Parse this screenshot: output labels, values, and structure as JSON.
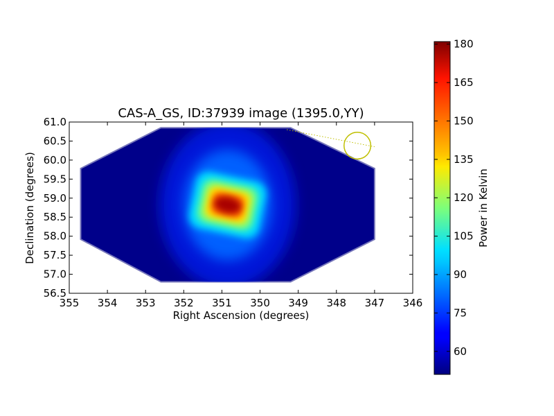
{
  "chart_data": {
    "type": "heatmap",
    "title": "CAS-A_GS, ID:37939 image (1395.0,YY)",
    "xlabel": "Right Ascension (degrees)",
    "ylabel": "Declination (degrees)",
    "xlim": [
      355,
      346
    ],
    "ylim": [
      56.5,
      61.0
    ],
    "x_ticks": [
      "355",
      "354",
      "353",
      "352",
      "351",
      "350",
      "349",
      "348",
      "347",
      "346"
    ],
    "y_ticks": [
      "56.5",
      "57.0",
      "57.5",
      "58.0",
      "58.5",
      "59.0",
      "59.5",
      "60.0",
      "60.5",
      "61.0"
    ],
    "colorbar": {
      "label": "Power in Kelvin",
      "range": [
        51,
        181
      ],
      "ticks": [
        "60",
        "75",
        "90",
        "105",
        "120",
        "135",
        "150",
        "165",
        "180"
      ],
      "colormap": "jet"
    },
    "source": {
      "ra": 350.85,
      "dec": 58.82,
      "peak_kelvin": 181,
      "background_kelvin": 51
    },
    "coverage_polygon_ra_dec": [
      [
        354.7,
        59.78
      ],
      [
        352.6,
        60.85
      ],
      [
        349.2,
        60.85
      ],
      [
        347.0,
        59.78
      ],
      [
        347.0,
        57.92
      ],
      [
        349.2,
        56.8
      ],
      [
        352.6,
        56.8
      ],
      [
        354.7,
        57.92
      ]
    ],
    "beam_marker": {
      "ra": 347.45,
      "dec": 60.38,
      "radius_deg": 0.35,
      "color": "#bfbf00"
    },
    "pointing_track": {
      "from": [
        349.3,
        60.8
      ],
      "to": [
        347.0,
        60.35
      ],
      "color": "#bfbf00"
    }
  }
}
